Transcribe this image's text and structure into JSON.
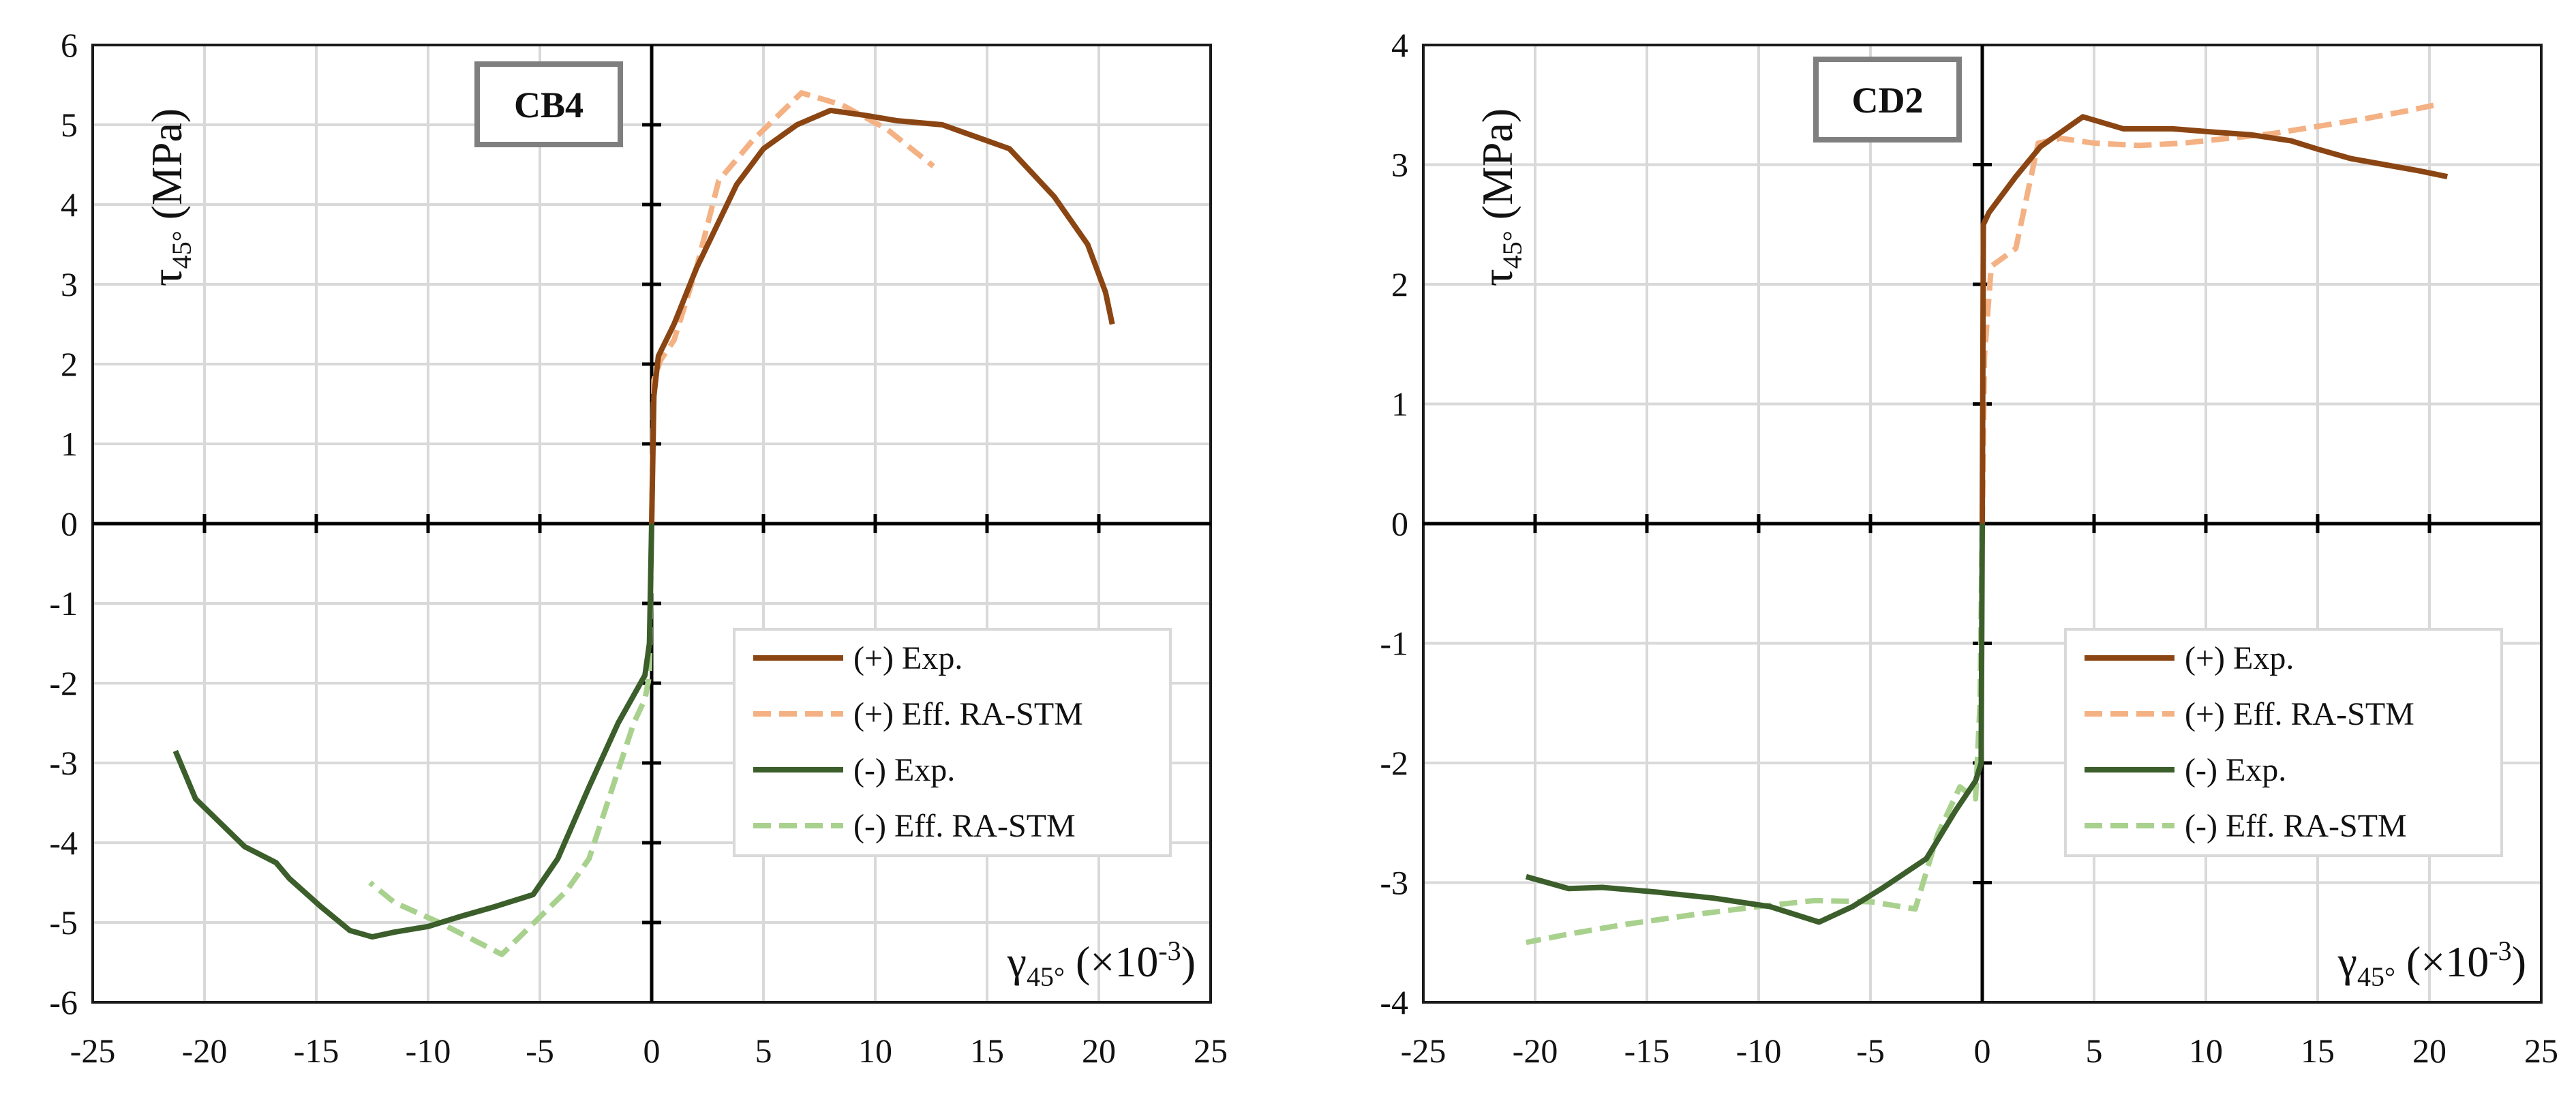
{
  "figure": {
    "legend_entries": [
      {
        "key": "pos_exp",
        "label": "(+) Exp.",
        "color": "#8B4513",
        "dash": "solid"
      },
      {
        "key": "pos_eff",
        "label": "(+) Eff. RA-STM",
        "color": "#F4B183",
        "dash": "dashed"
      },
      {
        "key": "neg_exp",
        "label": "(-) Exp.",
        "color": "#3B5E2B",
        "dash": "solid"
      },
      {
        "key": "neg_eff",
        "label": "(-) Eff. RA-STM",
        "color": "#A9D18E",
        "dash": "dashed"
      }
    ]
  },
  "chart_data": [
    {
      "type": "line",
      "panel_label": "CB4",
      "ylabel": "τ",
      "ylabel_sub": "45°",
      "ylabel_unit": " (MPa)",
      "xlabel": "γ",
      "xlabel_sub": "45°",
      "xlabel_unit": " (×10",
      "xlabel_exp": "-3",
      "xlabel_close": ")",
      "xlim": [
        -25,
        25
      ],
      "ylim": [
        -6,
        6
      ],
      "xticks": [
        -25,
        -20,
        -15,
        -10,
        -5,
        0,
        5,
        10,
        15,
        20,
        25
      ],
      "yticks": [
        -6,
        -5,
        -4,
        -3,
        -2,
        -1,
        0,
        1,
        2,
        3,
        4,
        5,
        6
      ],
      "grid": true,
      "legend_position": "bottom-right",
      "series": [
        {
          "key": "pos_exp",
          "name": "(+) Exp.",
          "x": [
            0,
            0.1,
            0.3,
            1.0,
            2.0,
            3.8,
            5.0,
            6.5,
            8.0,
            9.5,
            11.0,
            13.0,
            14.5,
            16.0,
            18.0,
            19.5,
            20.3,
            20.6
          ],
          "y": [
            0,
            1.6,
            2.1,
            2.5,
            3.2,
            4.25,
            4.7,
            5.0,
            5.18,
            5.12,
            5.05,
            5.0,
            4.85,
            4.7,
            4.1,
            3.5,
            2.9,
            2.5
          ]
        },
        {
          "key": "pos_eff",
          "name": "(+) Eff. RA-STM",
          "x": [
            0,
            0.1,
            0.4,
            1.0,
            2.0,
            3.0,
            4.5,
            6.7,
            8.5,
            10.5,
            12.6
          ],
          "y": [
            0,
            1.8,
            2.05,
            2.3,
            3.2,
            4.3,
            4.8,
            5.4,
            5.25,
            4.95,
            4.48
          ]
        },
        {
          "key": "neg_exp",
          "name": "(-) Exp.",
          "x": [
            0,
            -0.1,
            -0.3,
            -1.5,
            -2.8,
            -4.2,
            -5.3,
            -7.0,
            -8.5,
            -10.0,
            -11.5,
            -12.5,
            -13.5,
            -14.8,
            -16.2,
            -16.8,
            -18.2,
            -19.3,
            -20.4,
            -21.3
          ],
          "y": [
            0,
            -1.5,
            -1.9,
            -2.5,
            -3.3,
            -4.2,
            -4.65,
            -4.8,
            -4.92,
            -5.05,
            -5.12,
            -5.18,
            -5.1,
            -4.8,
            -4.45,
            -4.25,
            -4.05,
            -3.75,
            -3.45,
            -2.85
          ]
        },
        {
          "key": "neg_eff",
          "name": "(-) Eff. RA-STM",
          "x": [
            0,
            -0.1,
            -0.3,
            -0.8,
            -2.8,
            -3.8,
            -6.7,
            -9.5,
            -11.5,
            -12.6
          ],
          "y": [
            0,
            -1.9,
            -2.2,
            -2.5,
            -4.2,
            -4.6,
            -5.4,
            -5.0,
            -4.75,
            -4.5
          ]
        }
      ]
    },
    {
      "type": "line",
      "panel_label": "CD2",
      "ylabel": "τ",
      "ylabel_sub": "45°",
      "ylabel_unit": " (MPa)",
      "xlabel": "γ",
      "xlabel_sub": "45°",
      "xlabel_unit": " (×10",
      "xlabel_exp": "-3",
      "xlabel_close": ")",
      "xlim": [
        -25,
        25
      ],
      "ylim": [
        -4,
        4
      ],
      "xticks": [
        -25,
        -20,
        -15,
        -10,
        -5,
        0,
        5,
        10,
        15,
        20,
        25
      ],
      "yticks": [
        -4,
        -3,
        -2,
        -1,
        0,
        1,
        2,
        3,
        4
      ],
      "grid": true,
      "legend_position": "bottom-right",
      "series": [
        {
          "key": "pos_exp",
          "name": "(+) Exp.",
          "x": [
            0,
            0.05,
            0.3,
            1.5,
            2.6,
            4.5,
            6.3,
            8.5,
            10.5,
            12.0,
            13.8,
            15.0,
            16.5,
            18.0,
            19.5,
            20.8
          ],
          "y": [
            0,
            2.5,
            2.6,
            2.9,
            3.15,
            3.4,
            3.3,
            3.3,
            3.27,
            3.25,
            3.2,
            3.13,
            3.05,
            3.0,
            2.95,
            2.9
          ]
        },
        {
          "key": "pos_eff",
          "name": "(+) Eff. RA-STM",
          "x": [
            0,
            0.1,
            0.4,
            1.5,
            2.5,
            3.5,
            5.0,
            7.0,
            9.0,
            11.0,
            13.0,
            15.0,
            17.0,
            19.0,
            20.3
          ],
          "y": [
            0,
            1.4,
            2.15,
            2.3,
            3.18,
            3.22,
            3.18,
            3.16,
            3.18,
            3.22,
            3.26,
            3.32,
            3.38,
            3.45,
            3.5
          ]
        },
        {
          "key": "neg_exp",
          "name": "(-) Exp.",
          "x": [
            0,
            -0.05,
            -0.3,
            -1.2,
            -2.5,
            -4.5,
            -5.8,
            -7.3,
            -9.5,
            -12.0,
            -14.5,
            -17.0,
            -18.5,
            -20.4
          ],
          "y": [
            0,
            -2.0,
            -2.15,
            -2.4,
            -2.8,
            -3.05,
            -3.2,
            -3.33,
            -3.2,
            -3.13,
            -3.08,
            -3.04,
            -3.05,
            -2.95
          ]
        },
        {
          "key": "neg_eff",
          "name": "(-) Eff. RA-STM",
          "x": [
            0,
            -0.1,
            -0.3,
            -1.0,
            -2.0,
            -3.0,
            -5.0,
            -7.5,
            -10.0,
            -13.0,
            -16.0,
            -18.5,
            -20.4
          ],
          "y": [
            0,
            -1.5,
            -2.3,
            -2.2,
            -2.6,
            -3.22,
            -3.16,
            -3.15,
            -3.2,
            -3.27,
            -3.35,
            -3.43,
            -3.5
          ]
        }
      ]
    }
  ]
}
